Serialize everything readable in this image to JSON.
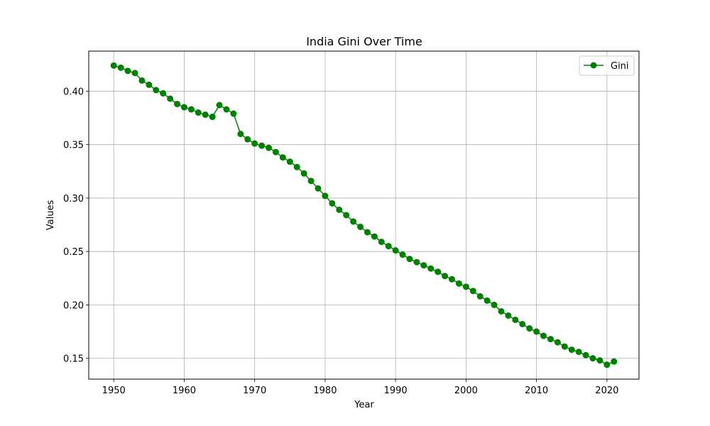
{
  "chart_data": {
    "type": "line",
    "title": "India Gini Over Time",
    "xlabel": "Year",
    "ylabel": "Values",
    "xlim": [
      1946.45,
      2024.55
    ],
    "ylim": [
      0.1305,
      0.4375
    ],
    "xticks": [
      1950,
      1960,
      1970,
      1980,
      1990,
      2000,
      2010,
      2020
    ],
    "yticks": [
      0.15,
      0.2,
      0.25,
      0.3,
      0.35,
      0.4
    ],
    "ytick_labels": [
      "0.15",
      "0.20",
      "0.25",
      "0.30",
      "0.35",
      "0.40"
    ],
    "grid": true,
    "legend_position": "top-right",
    "series": [
      {
        "name": "Gini",
        "color": "#008000",
        "marker": "circle",
        "x": [
          1950,
          1951,
          1952,
          1953,
          1954,
          1955,
          1956,
          1957,
          1958,
          1959,
          1960,
          1961,
          1962,
          1963,
          1964,
          1965,
          1966,
          1967,
          1968,
          1969,
          1970,
          1971,
          1972,
          1973,
          1974,
          1975,
          1976,
          1977,
          1978,
          1979,
          1980,
          1981,
          1982,
          1983,
          1984,
          1985,
          1986,
          1987,
          1988,
          1989,
          1990,
          1991,
          1992,
          1993,
          1994,
          1995,
          1996,
          1997,
          1998,
          1999,
          2000,
          2001,
          2002,
          2003,
          2004,
          2005,
          2006,
          2007,
          2008,
          2009,
          2010,
          2011,
          2012,
          2013,
          2014,
          2015,
          2016,
          2017,
          2018,
          2019,
          2020,
          2021
        ],
        "values": [
          0.424,
          0.422,
          0.419,
          0.417,
          0.41,
          0.406,
          0.401,
          0.398,
          0.393,
          0.388,
          0.385,
          0.383,
          0.38,
          0.378,
          0.376,
          0.387,
          0.383,
          0.379,
          0.36,
          0.355,
          0.351,
          0.349,
          0.347,
          0.343,
          0.338,
          0.334,
          0.329,
          0.323,
          0.316,
          0.309,
          0.302,
          0.295,
          0.289,
          0.284,
          0.278,
          0.273,
          0.268,
          0.264,
          0.259,
          0.255,
          0.251,
          0.247,
          0.243,
          0.24,
          0.237,
          0.234,
          0.231,
          0.227,
          0.224,
          0.22,
          0.217,
          0.213,
          0.208,
          0.204,
          0.2,
          0.194,
          0.19,
          0.186,
          0.182,
          0.178,
          0.175,
          0.171,
          0.168,
          0.165,
          0.161,
          0.158,
          0.156,
          0.153,
          0.15,
          0.148,
          0.144,
          0.147
        ]
      }
    ]
  }
}
